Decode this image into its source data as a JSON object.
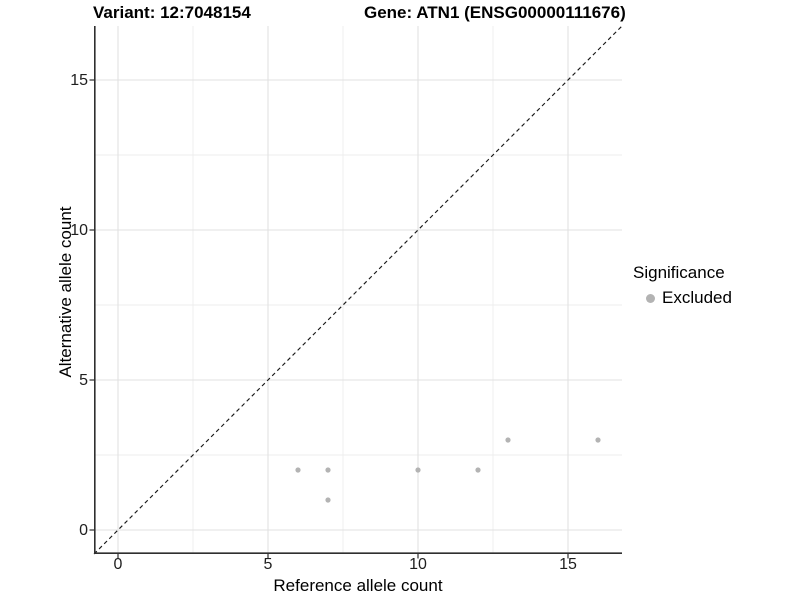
{
  "chart_data": {
    "type": "scatter",
    "title_left": "Variant: 12:7048154",
    "title_right": "Gene: ATN1 (ENSG00000111676)",
    "xlabel": "Reference allele count",
    "ylabel": "Alternative allele count",
    "xlim": [
      -0.8,
      16.8
    ],
    "ylim": [
      -0.8,
      16.8
    ],
    "x_ticks": [
      0,
      5,
      10,
      15
    ],
    "y_ticks": [
      0,
      5,
      10,
      15
    ],
    "x_minor_ticks": [
      2.5,
      7.5,
      12.5
    ],
    "y_minor_ticks": [
      2.5,
      7.5,
      12.5
    ],
    "grid": true,
    "identity_line": {
      "style": "dashed",
      "from": [
        -0.8,
        -0.8
      ],
      "to": [
        16.8,
        16.8
      ]
    },
    "series": [
      {
        "name": "Excluded",
        "points": [
          [
            6,
            2
          ],
          [
            7,
            1
          ],
          [
            7,
            2
          ],
          [
            10,
            2
          ],
          [
            12,
            2
          ],
          [
            13,
            3
          ],
          [
            16,
            3
          ]
        ]
      }
    ],
    "legend": {
      "title": "Significance",
      "position": "right",
      "items": [
        {
          "label": "Excluded",
          "color": "#b3b3b3"
        }
      ]
    },
    "colors": {
      "point": "#b3b3b3",
      "grid_major": "#e2e2e2",
      "grid_minor": "#eeeeee",
      "axis_line": "#2f2f2f",
      "tick_mark": "#2f2f2f",
      "identity_line": "#1a1a1a"
    }
  }
}
